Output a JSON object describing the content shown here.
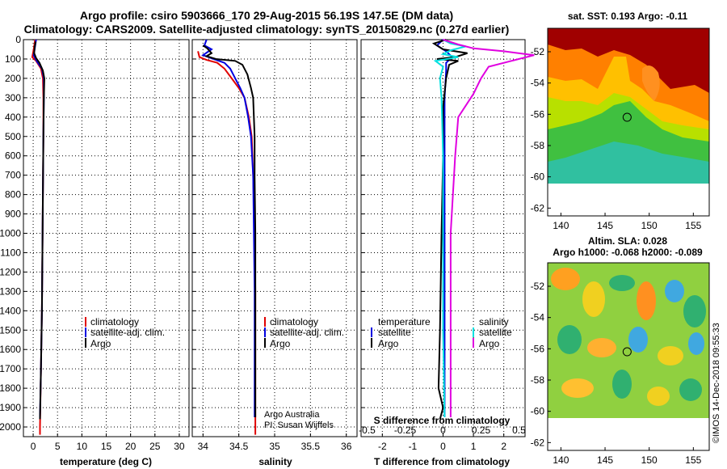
{
  "figure": {
    "title_line1": "Argo profile: csiro 5903666_170 29-Aug-2015 56.19S 147.5E (DM data)",
    "title_line2": "Climatology: CARS2009. Satellite-adjusted climatology: synTS_20150829.nc (0.27d earlier)",
    "credit_line1": "Argo Australia",
    "credit_line2": "PI: Susan Wijffels",
    "timestamp": "©IMOS 14-Dec-2018 09:55:33"
  },
  "colors": {
    "climatology": "#e00000",
    "satellite": "#0000e0",
    "argo": "#000000",
    "salinity_satellite": "#00e0e0",
    "salinity_argo": "#e000e0"
  },
  "chart_data": [
    {
      "id": "temperature",
      "type": "line",
      "xlabel": "temperature (deg C)",
      "ylabel": "",
      "xlim": [
        -2,
        32
      ],
      "ylim": [
        2050,
        0
      ],
      "xticks": [
        0,
        5,
        10,
        15,
        20,
        25,
        30
      ],
      "yticks": [
        0,
        100,
        200,
        300,
        400,
        500,
        600,
        700,
        800,
        900,
        1000,
        1100,
        1200,
        1300,
        1400,
        1500,
        1600,
        1700,
        1800,
        1900,
        2000
      ],
      "grid": true,
      "legend": [
        "climatology",
        "satellite-adj. clim.",
        "Argo"
      ],
      "legend_placement": "lower-right",
      "series": [
        {
          "name": "climatology",
          "color": "#e00000",
          "points": [
            [
              0.4,
              0
            ],
            [
              0.1,
              50
            ],
            [
              -0.2,
              90
            ],
            [
              0.6,
              110
            ],
            [
              1.6,
              150
            ],
            [
              2.0,
              200
            ],
            [
              2.1,
              300
            ],
            [
              2.1,
              500
            ],
            [
              2.0,
              800
            ],
            [
              1.9,
              1100
            ],
            [
              1.8,
              1400
            ],
            [
              1.6,
              1700
            ],
            [
              1.4,
              2000
            ],
            [
              1.4,
              2040
            ]
          ]
        },
        {
          "name": "satellite-adj. clim.",
          "color": "#0000e0",
          "points": [
            [
              0.6,
              0
            ],
            [
              0.3,
              50
            ],
            [
              0.1,
              80
            ],
            [
              0.7,
              110
            ],
            [
              1.8,
              150
            ],
            [
              2.2,
              200
            ],
            [
              2.2,
              300
            ],
            [
              2.1,
              500
            ],
            [
              2.0,
              800
            ],
            [
              1.9,
              1100
            ],
            [
              1.8,
              1400
            ],
            [
              1.6,
              1700
            ],
            [
              1.4,
              1950
            ]
          ]
        },
        {
          "name": "Argo",
          "color": "#000000",
          "points": [
            [
              0.5,
              10
            ],
            [
              0.3,
              40
            ],
            [
              0.2,
              70
            ],
            [
              0.6,
              95
            ],
            [
              1.3,
              120
            ],
            [
              2.0,
              160
            ],
            [
              2.3,
              200
            ],
            [
              2.2,
              300
            ],
            [
              2.1,
              500
            ],
            [
              2.0,
              800
            ],
            [
              1.9,
              1100
            ],
            [
              1.8,
              1400
            ],
            [
              1.6,
              1700
            ],
            [
              1.4,
              1960
            ]
          ]
        }
      ]
    },
    {
      "id": "salinity",
      "type": "line",
      "xlabel": "salinity",
      "xlim": [
        33.85,
        36.15
      ],
      "ylim": [
        2050,
        0
      ],
      "xticks": [
        34,
        34.5,
        35,
        35.5,
        36
      ],
      "xtick_labels": [
        "34",
        "34.5",
        "35",
        "35.5",
        "36"
      ],
      "grid": true,
      "legend": [
        "climatology",
        "satellite-adj. clim.",
        "Argo"
      ],
      "legend_placement": "lower-right",
      "series": [
        {
          "name": "climatology",
          "color": "#e00000",
          "points": [
            [
              33.93,
              60
            ],
            [
              33.95,
              90
            ],
            [
              34.05,
              105
            ],
            [
              34.2,
              120
            ],
            [
              34.3,
              150
            ],
            [
              34.4,
              200
            ],
            [
              34.5,
              250
            ],
            [
              34.58,
              300
            ],
            [
              34.64,
              400
            ],
            [
              34.68,
              500
            ],
            [
              34.7,
              700
            ],
            [
              34.72,
              1000
            ],
            [
              34.73,
              1300
            ],
            [
              34.73,
              1600
            ],
            [
              34.73,
              2040
            ]
          ]
        },
        {
          "name": "satellite-adj. clim.",
          "color": "#0000e0",
          "points": [
            [
              34.05,
              0
            ],
            [
              34.02,
              30
            ],
            [
              34.12,
              50
            ],
            [
              34.0,
              80
            ],
            [
              34.15,
              100
            ],
            [
              34.3,
              120
            ],
            [
              34.38,
              150
            ],
            [
              34.45,
              200
            ],
            [
              34.52,
              250
            ],
            [
              34.58,
              300
            ],
            [
              34.63,
              400
            ],
            [
              34.67,
              500
            ],
            [
              34.7,
              700
            ],
            [
              34.71,
              1000
            ],
            [
              34.72,
              1300
            ],
            [
              34.72,
              1600
            ],
            [
              34.72,
              1950
            ]
          ]
        },
        {
          "name": "Argo",
          "color": "#000000",
          "points": [
            [
              34.0,
              30
            ],
            [
              34.06,
              45
            ],
            [
              34.12,
              70
            ],
            [
              34.05,
              85
            ],
            [
              34.18,
              100
            ],
            [
              34.45,
              110
            ],
            [
              34.55,
              130
            ],
            [
              34.62,
              180
            ],
            [
              34.67,
              250
            ],
            [
              34.7,
              300
            ],
            [
              34.71,
              400
            ],
            [
              34.72,
              500
            ],
            [
              34.72,
              700
            ],
            [
              34.73,
              1000
            ],
            [
              34.73,
              1300
            ],
            [
              34.73,
              1600
            ],
            [
              34.73,
              1950
            ]
          ]
        }
      ]
    },
    {
      "id": "differences",
      "type": "line",
      "xlabel": "T difference from climatology",
      "xlabel_top": "S difference from climatology",
      "xlim": [
        -2.7,
        2.7
      ],
      "ylim": [
        2050,
        0
      ],
      "xticks": [
        -2,
        -1,
        0,
        1,
        2
      ],
      "xtick_labels": [
        "-2",
        "-1",
        "0",
        "1",
        "2"
      ],
      "xticks_s": [
        -0.5,
        -0.25,
        0,
        0.25,
        0.5
      ],
      "xtick_labels_s": [
        "-0.5",
        "-0.25",
        "0",
        "0.25",
        "0.5"
      ],
      "s_scale_per_t": 0.2,
      "grid": true,
      "legend_temperature_title": "temperature",
      "legend_salinity_title": "salinity",
      "legend_temperature": [
        "satellite",
        "Argo"
      ],
      "legend_salinity": [
        "satellite",
        "Argo"
      ],
      "series": [
        {
          "name": "T satellite",
          "color": "#0000e0",
          "points": [
            [
              0.0,
              0
            ],
            [
              -0.2,
              30
            ],
            [
              0.1,
              60
            ],
            [
              0.3,
              90
            ],
            [
              0.1,
              120
            ],
            [
              0.1,
              160
            ],
            [
              0.05,
              300
            ],
            [
              0.05,
              600
            ],
            [
              0.05,
              1000
            ],
            [
              0.05,
              1500
            ],
            [
              0.05,
              1950
            ]
          ]
        },
        {
          "name": "T Argo",
          "color": "#000000",
          "points": [
            [
              0.1,
              0
            ],
            [
              -0.3,
              20
            ],
            [
              0.0,
              50
            ],
            [
              0.8,
              70
            ],
            [
              0.4,
              90
            ],
            [
              -0.2,
              100
            ],
            [
              0.5,
              110
            ],
            [
              0.2,
              130
            ],
            [
              0.1,
              200
            ],
            [
              0.0,
              350
            ],
            [
              0.0,
              600
            ],
            [
              -0.05,
              1000
            ],
            [
              -0.1,
              1500
            ],
            [
              -0.15,
              1800
            ],
            [
              0.0,
              1900
            ],
            [
              -0.1,
              1960
            ]
          ]
        },
        {
          "name": "S satellite",
          "color": "#00e0e0",
          "points": [
            [
              0.0,
              0
            ],
            [
              0.05,
              20
            ],
            [
              0.15,
              35
            ],
            [
              0.05,
              55
            ],
            [
              0.0,
              75
            ],
            [
              0.1,
              90
            ],
            [
              -0.05,
              110
            ],
            [
              0.0,
              140
            ],
            [
              -0.02,
              200
            ],
            [
              -0.01,
              300
            ],
            [
              0.0,
              600
            ],
            [
              0.0,
              1000
            ],
            [
              0.0,
              1500
            ],
            [
              0.01,
              1950
            ]
          ]
        },
        {
          "name": "S Argo",
          "color": "#e000e0",
          "points": [
            [
              0.0,
              0
            ],
            [
              0.1,
              25
            ],
            [
              0.2,
              45
            ],
            [
              0.4,
              60
            ],
            [
              0.6,
              80
            ],
            [
              0.45,
              110
            ],
            [
              0.3,
              140
            ],
            [
              0.25,
              200
            ],
            [
              0.2,
              280
            ],
            [
              0.1,
              400
            ],
            [
              0.08,
              600
            ],
            [
              0.05,
              1000
            ],
            [
              0.05,
              1500
            ],
            [
              0.05,
              1950
            ]
          ]
        }
      ]
    }
  ],
  "maps": {
    "sst": {
      "title": "sat. SST: 0.193 Argo: -0.11",
      "lon_ticks": [
        "140",
        "145",
        "150",
        "155"
      ],
      "lat_ticks": [
        "-52",
        "-54",
        "-56",
        "-58",
        "-60",
        "-62"
      ],
      "profile_marker": [
        147.5,
        -56.19
      ]
    },
    "sla": {
      "title_line1": "Altim. SLA: 0.028",
      "title_line2": "Argo h1000: -0.068 h2000: -0.089",
      "lon_ticks": [
        "140",
        "145",
        "150",
        "155"
      ],
      "lat_ticks": [
        "-52",
        "-54",
        "-56",
        "-58",
        "-60",
        "-62"
      ],
      "profile_marker": [
        147.5,
        -56.19
      ]
    }
  }
}
